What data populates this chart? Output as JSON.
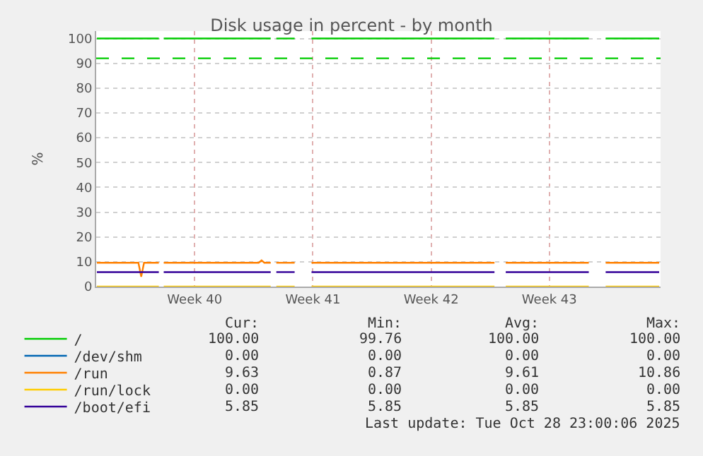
{
  "chart_data": {
    "type": "line",
    "title": "Disk usage in percent - by month",
    "ylabel": "%",
    "x": [
      "2025-09-25T15:00",
      "2025-09-29T07:00",
      "2025-09-29T10:00",
      "2025-09-29T14:00",
      "2025-10-05T22:00",
      "2025-10-06T02:00",
      "2025-10-06T06:00",
      "2025-10-07T08:00",
      "2025-10-07T20:00",
      "2025-10-08T08:00",
      "2025-10-19T04:00",
      "2025-10-19T12:00",
      "2025-10-19T20:00",
      "2025-10-24T18:00",
      "2025-10-25T06:00",
      "2025-10-25T18:00",
      "2025-10-28T22:00"
    ],
    "series": [
      {
        "name": "/",
        "color": "#00cc00",
        "values": [
          100,
          100,
          null,
          100,
          100,
          null,
          100,
          100,
          null,
          100,
          100,
          null,
          100,
          100,
          null,
          100,
          100
        ]
      },
      {
        "name": "/dev/shm",
        "color": "#0066b3",
        "values": [
          null,
          null,
          null,
          null,
          null,
          null,
          null,
          null,
          null,
          null,
          null,
          null,
          null,
          null,
          null,
          null,
          null
        ]
      },
      {
        "name": "/run",
        "color": "#ff8000",
        "x": [
          "2025-09-25T15:00",
          "2025-09-28T02:00",
          "2025-09-28T06:00",
          "2025-09-28T10:00",
          "2025-09-29T07:00",
          "2025-09-29T10:00",
          "2025-09-29T14:00",
          "2025-10-05T05:00",
          "2025-10-05T09:00",
          "2025-10-05T13:00",
          "2025-10-05T22:00",
          "2025-10-06T02:00",
          "2025-10-06T06:00",
          "2025-10-07T08:00",
          "2025-10-07T20:00",
          "2025-10-08T08:00",
          "2025-10-19T04:00",
          "2025-10-19T12:00",
          "2025-10-19T20:00",
          "2025-10-24T18:00",
          "2025-10-25T06:00",
          "2025-10-25T18:00",
          "2025-10-28T22:00"
        ],
        "values": [
          9.6,
          9.6,
          4,
          9.6,
          9.6,
          null,
          9.6,
          9.6,
          10.6,
          9.6,
          9.6,
          null,
          9.6,
          9.6,
          null,
          9.6,
          9.6,
          null,
          9.6,
          9.6,
          null,
          9.6,
          9.6
        ]
      },
      {
        "name": "/run/lock",
        "color": "#ffcc00",
        "values": [
          0,
          0,
          null,
          0,
          0,
          null,
          0,
          0,
          null,
          0,
          0,
          null,
          0,
          0,
          null,
          0,
          0
        ]
      },
      {
        "name": "/boot/efi",
        "color": "#330099",
        "values": [
          5.85,
          5.85,
          null,
          5.85,
          5.85,
          null,
          5.85,
          5.85,
          null,
          5.85,
          5.85,
          null,
          5.85,
          5.85,
          null,
          5.85,
          5.85
        ]
      }
    ],
    "xlim": [
      "2025-09-25T14:00",
      "2025-10-29T00:00"
    ],
    "xticks": [
      {
        "value": "2025-10-01T10:00",
        "label": "Week 40"
      },
      {
        "value": "2025-10-08T10:00",
        "label": "Week 41"
      },
      {
        "value": "2025-10-15T10:00",
        "label": "Week 42"
      },
      {
        "value": "2025-10-22T10:00",
        "label": "Week 43"
      }
    ],
    "ylim": [
      0,
      103
    ],
    "yticks": [
      0,
      10,
      20,
      30,
      40,
      50,
      60,
      70,
      80,
      90,
      100
    ],
    "ref_lines": [
      {
        "axis": "y",
        "value": 92,
        "color": "#00cc00",
        "line_style": "dashed"
      }
    ],
    "grid": true,
    "legend": "bottom",
    "line_style": "solid",
    "marker": "none",
    "annotations": [
      "Cur:",
      "Min:",
      "Avg:",
      "Max:",
      "100.00",
      "99.76",
      "100.00",
      "100.00",
      "0.00",
      "0.00",
      "0.00",
      "0.00",
      "9.63",
      "0.87",
      "9.61",
      "10.86",
      "0.00",
      "0.00",
      "0.00",
      "0.00",
      "5.85",
      "5.85",
      "5.85",
      "5.85",
      "Last update: Tue Oct 28 23:00:06 2025"
    ]
  }
}
